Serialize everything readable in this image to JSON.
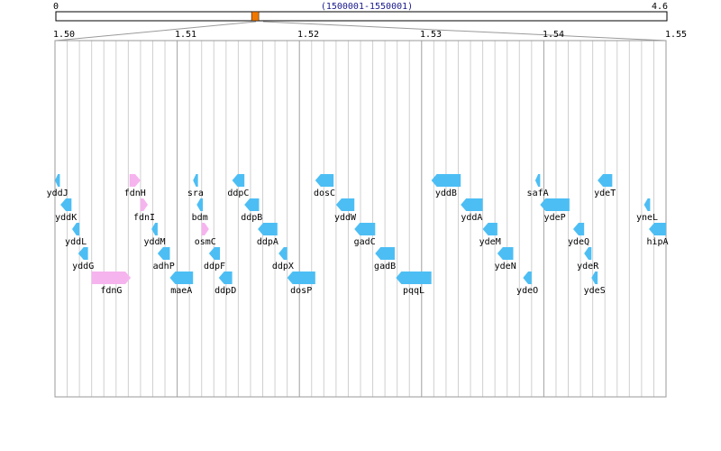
{
  "overview": {
    "start_label": "0",
    "end_label": "4.6",
    "range_label": "(1500001-1550001)",
    "total_mb": 4.6,
    "view_start_mb": 1.5,
    "view_end_mb": 1.55
  },
  "scale": {
    "ticks": [
      "1.50",
      "1.51",
      "1.52",
      "1.53",
      "1.54",
      "1.55"
    ]
  },
  "colors": {
    "gene": "#4dbef4",
    "gene_alt": "#f6b4ee",
    "marker": "#f07800",
    "grid_major": "#a0a0a0",
    "grid_minor": "#d0d0d0",
    "border": "#9a9a9a"
  },
  "genes": [
    {
      "name": "yddJ",
      "start": 1.5,
      "end": 1.5004,
      "strand": "-",
      "row": 0,
      "color": "gene"
    },
    {
      "name": "yddK",
      "start": 1.50045,
      "end": 1.50135,
      "strand": "-",
      "row": 1,
      "color": "gene"
    },
    {
      "name": "yddL",
      "start": 1.5014,
      "end": 1.502,
      "strand": "-",
      "row": 2,
      "color": "gene"
    },
    {
      "name": "yddG",
      "start": 1.5019,
      "end": 1.5027,
      "strand": "-",
      "row": 3,
      "color": "gene"
    },
    {
      "name": "fdnG",
      "start": 1.503,
      "end": 1.5062,
      "strand": "+",
      "row": 4,
      "color": "gene_alt"
    },
    {
      "name": "fdnH",
      "start": 1.5061,
      "end": 1.507,
      "strand": "+",
      "row": 0,
      "color": "gene_alt"
    },
    {
      "name": "fdnI",
      "start": 1.507,
      "end": 1.5076,
      "strand": "+",
      "row": 1,
      "color": "gene_alt"
    },
    {
      "name": "yddM",
      "start": 1.5079,
      "end": 1.5084,
      "strand": "-",
      "row": 2,
      "color": "gene"
    },
    {
      "name": "adhP",
      "start": 1.5084,
      "end": 1.5094,
      "strand": "-",
      "row": 3,
      "color": "gene"
    },
    {
      "name": "maeA",
      "start": 1.5094,
      "end": 1.5113,
      "strand": "-",
      "row": 4,
      "color": "gene"
    },
    {
      "name": "sra",
      "start": 1.5113,
      "end": 1.5117,
      "strand": "-",
      "row": 0,
      "color": "gene"
    },
    {
      "name": "bdm",
      "start": 1.5116,
      "end": 1.5121,
      "strand": "-",
      "row": 1,
      "color": "gene"
    },
    {
      "name": "osmC",
      "start": 1.512,
      "end": 1.5126,
      "strand": "+",
      "row": 2,
      "color": "gene_alt"
    },
    {
      "name": "ddpF",
      "start": 1.5126,
      "end": 1.5135,
      "strand": "-",
      "row": 3,
      "color": "gene"
    },
    {
      "name": "ddpD",
      "start": 1.5134,
      "end": 1.5145,
      "strand": "-",
      "row": 4,
      "color": "gene"
    },
    {
      "name": "ddpC",
      "start": 1.5145,
      "end": 1.5155,
      "strand": "-",
      "row": 0,
      "color": "gene"
    },
    {
      "name": "ddpB",
      "start": 1.5155,
      "end": 1.5167,
      "strand": "-",
      "row": 1,
      "color": "gene"
    },
    {
      "name": "ddpA",
      "start": 1.5166,
      "end": 1.5182,
      "strand": "-",
      "row": 2,
      "color": "gene"
    },
    {
      "name": "ddpX",
      "start": 1.5183,
      "end": 1.519,
      "strand": "-",
      "row": 3,
      "color": "gene"
    },
    {
      "name": "dosP",
      "start": 1.519,
      "end": 1.5213,
      "strand": "-",
      "row": 4,
      "color": "gene"
    },
    {
      "name": "dosC",
      "start": 1.5213,
      "end": 1.5228,
      "strand": "-",
      "row": 0,
      "color": "gene"
    },
    {
      "name": "yddW",
      "start": 1.523,
      "end": 1.5245,
      "strand": "-",
      "row": 1,
      "color": "gene"
    },
    {
      "name": "gadC",
      "start": 1.5245,
      "end": 1.5262,
      "strand": "-",
      "row": 2,
      "color": "gene"
    },
    {
      "name": "gadB",
      "start": 1.5262,
      "end": 1.5278,
      "strand": "-",
      "row": 3,
      "color": "gene"
    },
    {
      "name": "pqqL",
      "start": 1.5279,
      "end": 1.5308,
      "strand": "-",
      "row": 4,
      "color": "gene"
    },
    {
      "name": "yddB",
      "start": 1.5308,
      "end": 1.5332,
      "strand": "-",
      "row": 0,
      "color": "gene"
    },
    {
      "name": "yddA",
      "start": 1.5332,
      "end": 1.535,
      "strand": "-",
      "row": 1,
      "color": "gene"
    },
    {
      "name": "ydeM",
      "start": 1.535,
      "end": 1.5362,
      "strand": "-",
      "row": 2,
      "color": "gene"
    },
    {
      "name": "ydeN",
      "start": 1.5362,
      "end": 1.5375,
      "strand": "-",
      "row": 3,
      "color": "gene"
    },
    {
      "name": "ydeO",
      "start": 1.5383,
      "end": 1.539,
      "strand": "-",
      "row": 4,
      "color": "gene"
    },
    {
      "name": "safA",
      "start": 1.5393,
      "end": 1.5397,
      "strand": "-",
      "row": 0,
      "color": "gene"
    },
    {
      "name": "ydeP",
      "start": 1.5397,
      "end": 1.5421,
      "strand": "-",
      "row": 1,
      "color": "gene"
    },
    {
      "name": "ydeQ",
      "start": 1.5424,
      "end": 1.5433,
      "strand": "-",
      "row": 2,
      "color": "gene"
    },
    {
      "name": "ydeR",
      "start": 1.5433,
      "end": 1.5439,
      "strand": "-",
      "row": 3,
      "color": "gene"
    },
    {
      "name": "ydeS",
      "start": 1.5439,
      "end": 1.5444,
      "strand": "-",
      "row": 4,
      "color": "gene"
    },
    {
      "name": "ydeT",
      "start": 1.5444,
      "end": 1.5456,
      "strand": "-",
      "row": 0,
      "color": "gene"
    },
    {
      "name": "yneL",
      "start": 1.5482,
      "end": 1.5487,
      "strand": "-",
      "row": 1,
      "color": "gene"
    },
    {
      "name": "hipA",
      "start": 1.5486,
      "end": 1.55,
      "strand": "-",
      "row": 2,
      "color": "gene"
    }
  ]
}
